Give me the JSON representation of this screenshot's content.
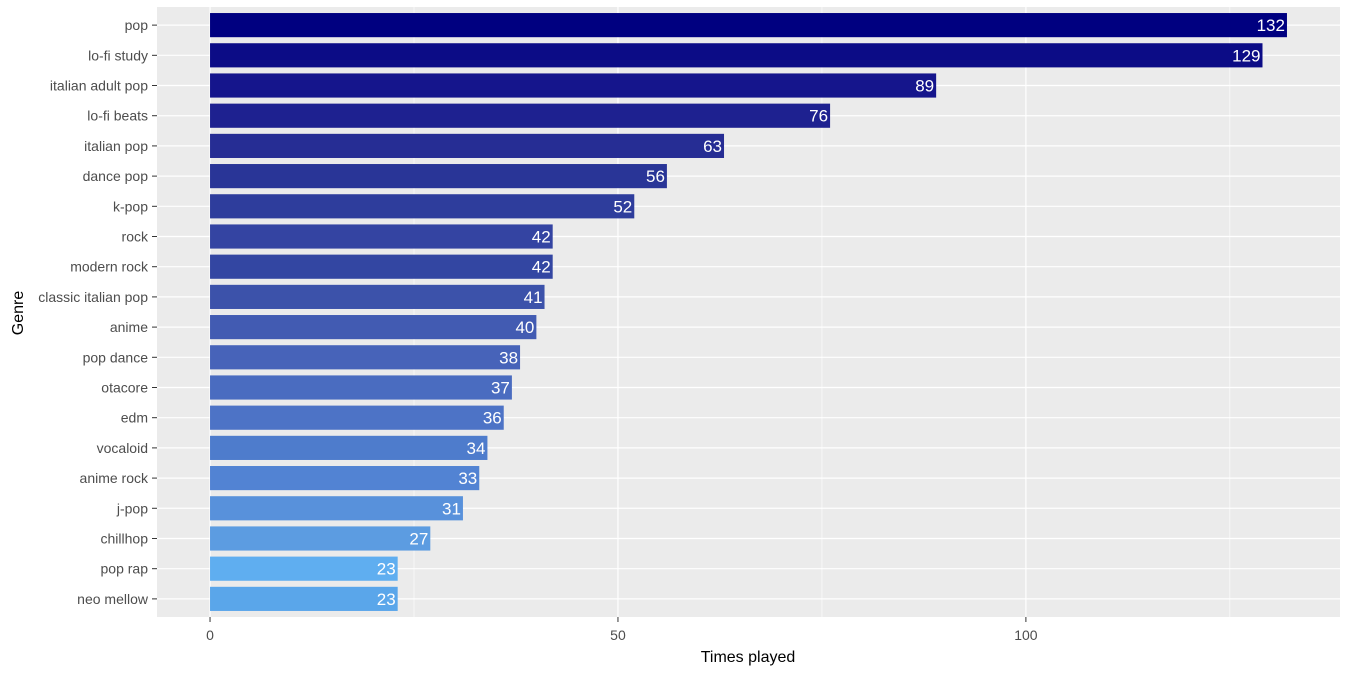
{
  "chart_data": {
    "type": "bar",
    "orientation": "horizontal",
    "categories": [
      "pop",
      "lo-fi study",
      "italian adult pop",
      "lo-fi beats",
      "italian pop",
      "dance pop",
      "k-pop",
      "rock",
      "modern rock",
      "classic italian pop",
      "anime",
      "pop dance",
      "otacore",
      "edm",
      "vocaloid",
      "anime rock",
      "j-pop",
      "chillhop",
      "pop rap",
      "neo mellow"
    ],
    "values": [
      132,
      129,
      89,
      76,
      63,
      56,
      52,
      42,
      42,
      41,
      40,
      38,
      37,
      36,
      34,
      33,
      31,
      27,
      23,
      23
    ],
    "bar_colors": [
      "#000080",
      "#0c0c86",
      "#15158c",
      "#1e2190",
      "#262d94",
      "#293597",
      "#2e3d9c",
      "#3444a2",
      "#3346a2",
      "#3c52aa",
      "#425bb2",
      "#4763b9",
      "#4a6cc0",
      "#4d73c6",
      "#4e7ccc",
      "#5283d3",
      "#5891db",
      "#5c9ce1",
      "#5faef0",
      "#5aa6ea"
    ],
    "xlabel": "Times played",
    "ylabel": "Genre",
    "x_ticks": [
      0,
      50,
      100
    ],
    "xlim": [
      -6.5,
      138.5
    ],
    "grid": true,
    "panel_background": "#ebebeb",
    "grid_color": "#ffffff",
    "label_color": "#ffffff"
  }
}
